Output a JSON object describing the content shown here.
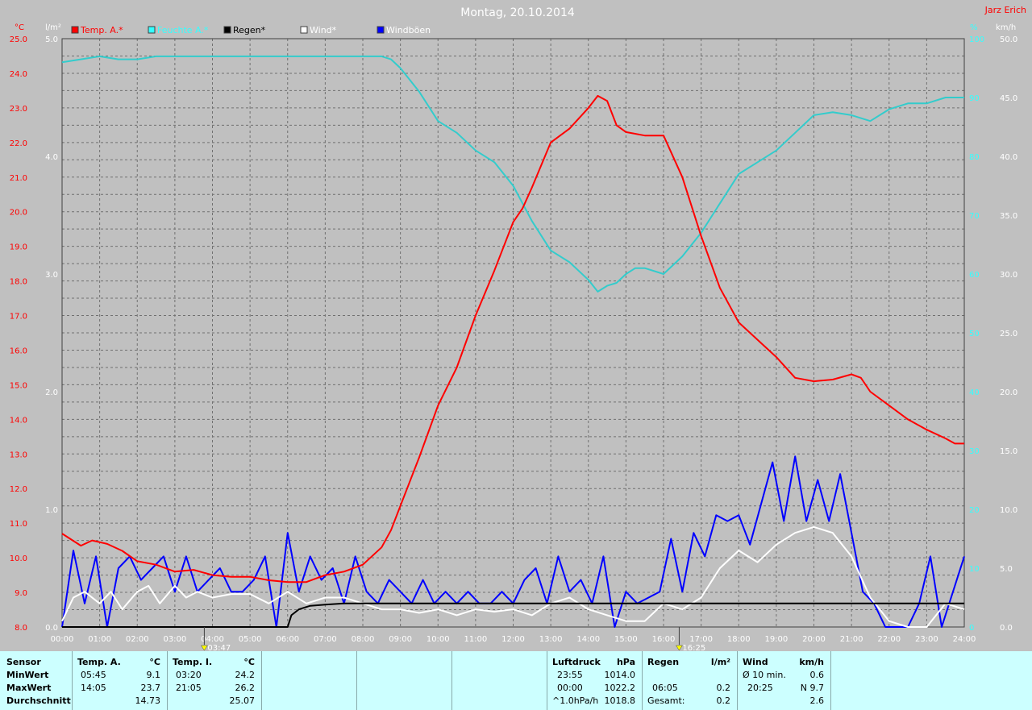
{
  "header": {
    "title": "Montag, 20.10.2014",
    "author": "Jarz Erich"
  },
  "colors": {
    "bg": "#c0c0c0",
    "temp": "#ff0000",
    "humidity": "#33cccc",
    "rain": "#000000",
    "wind": "#ffffff",
    "gusts": "#0000ff",
    "author": "#ff0000",
    "table_bg": "#ccffff"
  },
  "legend": [
    {
      "label": "Temp. A.*",
      "color": "#ff0000",
      "text_color": "#ff0000"
    },
    {
      "label": "Feuchte A.*",
      "color": "#33ffff",
      "text_color": "#33ffff"
    },
    {
      "label": "Regen*",
      "color": "#000000",
      "text_color": "#000000"
    },
    {
      "label": "Wind*",
      "color": "#ffffff",
      "text_color": "#ffffff"
    },
    {
      "label": "Windböen",
      "color": "#0000ff",
      "text_color": "#ffffff"
    }
  ],
  "axis_units": {
    "temp": "°C",
    "rain": "l/m²",
    "humidity": "%",
    "wind": "km/h"
  },
  "sun_markers": {
    "sunrise": "03:47",
    "sunset": "16:25"
  },
  "chart_data": {
    "type": "line",
    "title": "Montag, 20.10.2014",
    "x_ticks": [
      "00:00",
      "01:00",
      "02:00",
      "03:00",
      "04:00",
      "05:00",
      "06:00",
      "07:00",
      "08:00",
      "09:00",
      "10:00",
      "11:00",
      "12:00",
      "13:00",
      "14:00",
      "15:00",
      "16:00",
      "17:00",
      "18:00",
      "19:00",
      "20:00",
      "21:00",
      "22:00",
      "23:00",
      "24:00"
    ],
    "axes": {
      "temp": {
        "label": "°C",
        "range": [
          8.0,
          25.0
        ],
        "ticks": [
          "8.0",
          "9.0",
          "10.0",
          "11.0",
          "12.0",
          "13.0",
          "14.0",
          "15.0",
          "16.0",
          "17.0",
          "18.0",
          "19.0",
          "20.0",
          "21.0",
          "22.0",
          "23.0",
          "24.0",
          "25.0"
        ]
      },
      "rain": {
        "label": "l/m²",
        "range": [
          0.0,
          5.0
        ],
        "ticks": [
          "0.0",
          "1.0",
          "2.0",
          "3.0",
          "4.0",
          "5.0"
        ]
      },
      "humidity": {
        "label": "%",
        "range": [
          0,
          100
        ],
        "ticks": [
          "0",
          "10",
          "20",
          "30",
          "40",
          "50",
          "60",
          "70",
          "80",
          "90",
          "100"
        ]
      },
      "wind": {
        "label": "km/h",
        "range": [
          0.0,
          50.0
        ],
        "ticks": [
          "0.0",
          "5.0",
          "10.0",
          "15.0",
          "20.0",
          "25.0",
          "30.0",
          "35.0",
          "40.0",
          "45.0",
          "50.0"
        ]
      }
    },
    "grid": true,
    "series": [
      {
        "name": "Temp. A.*",
        "axis": "temp",
        "x": [
          0,
          0.5,
          0.8,
          1.2,
          1.6,
          2.0,
          2.5,
          3.0,
          3.5,
          4.0,
          4.5,
          5.0,
          5.5,
          6.0,
          6.5,
          7.0,
          7.5,
          8.0,
          8.5,
          8.75,
          9.0,
          9.5,
          10.0,
          10.5,
          11.0,
          11.5,
          12.0,
          12.25,
          12.5,
          13.0,
          13.5,
          14.0,
          14.25,
          14.5,
          14.75,
          15.0,
          15.5,
          16.0,
          16.5,
          17.0,
          17.5,
          18.0,
          18.5,
          19.0,
          19.5,
          20.0,
          20.5,
          21.0,
          21.25,
          21.5,
          22.0,
          22.5,
          23.0,
          23.5,
          23.75,
          24.0
        ],
        "values": [
          10.7,
          10.35,
          10.5,
          10.4,
          10.2,
          9.9,
          9.8,
          9.6,
          9.65,
          9.5,
          9.45,
          9.45,
          9.35,
          9.3,
          9.3,
          9.5,
          9.6,
          9.8,
          10.3,
          10.8,
          11.5,
          12.9,
          14.4,
          15.5,
          17.0,
          18.3,
          19.7,
          20.1,
          20.7,
          22.0,
          22.4,
          23.0,
          23.35,
          23.2,
          22.5,
          22.3,
          22.2,
          22.2,
          21.0,
          19.3,
          17.8,
          16.8,
          16.3,
          15.8,
          15.2,
          15.1,
          15.15,
          15.3,
          15.2,
          14.8,
          14.4,
          14.0,
          13.7,
          13.45,
          13.3,
          13.3
        ]
      },
      {
        "name": "Feuchte A.*",
        "axis": "humidity",
        "x": [
          0,
          0.5,
          1.0,
          1.5,
          2.0,
          2.5,
          3.0,
          4.0,
          5.0,
          6.0,
          7.0,
          8.0,
          8.5,
          8.75,
          9.0,
          9.5,
          10.0,
          10.5,
          11.0,
          11.5,
          12.0,
          12.5,
          13.0,
          13.5,
          14.0,
          14.25,
          14.5,
          14.75,
          15.0,
          15.25,
          15.5,
          16.0,
          16.5,
          17.0,
          17.5,
          18.0,
          18.5,
          19.0,
          19.5,
          20.0,
          20.5,
          21.0,
          21.5,
          22.0,
          22.5,
          23.0,
          23.5,
          24.0
        ],
        "values": [
          96,
          96.5,
          97,
          96.5,
          96.5,
          97,
          97,
          97,
          97,
          97,
          97,
          97,
          97,
          96.5,
          95,
          91,
          86,
          84,
          81,
          79,
          75,
          69,
          64,
          62,
          59,
          57,
          58,
          58.5,
          60,
          61,
          61,
          60,
          63,
          67,
          72,
          77,
          79,
          81,
          84,
          87,
          87.5,
          87,
          86,
          88,
          89,
          89,
          90,
          90
        ]
      },
      {
        "name": "Regen*",
        "axis": "rain",
        "x": [
          0,
          6.0,
          6.05,
          6.1,
          6.3,
          6.6,
          7.0,
          7.5,
          8.0,
          24.0
        ],
        "values": [
          0,
          0,
          0.05,
          0.1,
          0.15,
          0.18,
          0.19,
          0.2,
          0.2,
          0.2
        ]
      },
      {
        "name": "Wind*",
        "axis": "wind",
        "x": [
          0,
          0.3,
          0.6,
          1.0,
          1.3,
          1.6,
          2.0,
          2.3,
          2.6,
          3.0,
          3.3,
          3.6,
          4.0,
          4.5,
          5.0,
          5.5,
          6.0,
          6.5,
          7.0,
          7.5,
          8.0,
          8.5,
          9.0,
          9.5,
          10.0,
          10.5,
          11.0,
          11.5,
          12.0,
          12.5,
          13.0,
          13.5,
          14.0,
          14.5,
          15.0,
          15.5,
          16.0,
          16.5,
          17.0,
          17.5,
          18.0,
          18.5,
          19.0,
          19.5,
          20.0,
          20.5,
          21.0,
          21.5,
          22.0,
          22.5,
          23.0,
          23.5,
          24.0
        ],
        "values": [
          0.5,
          2.5,
          3.0,
          2.0,
          3.0,
          1.5,
          3.0,
          3.5,
          2.0,
          3.5,
          2.5,
          3.0,
          2.5,
          2.8,
          2.8,
          2.0,
          3.0,
          2.0,
          2.5,
          2.5,
          2.0,
          1.5,
          1.5,
          1.2,
          1.5,
          1.0,
          1.5,
          1.3,
          1.5,
          1.0,
          2.0,
          2.5,
          1.5,
          1.0,
          0.5,
          0.5,
          2.0,
          1.5,
          2.5,
          5.0,
          6.5,
          5.5,
          7.0,
          8.0,
          8.5,
          8.0,
          6.0,
          2.5,
          0.5,
          0,
          0,
          2.0,
          1.5
        ]
      },
      {
        "name": "Windböen",
        "axis": "wind",
        "x": [
          0,
          0.3,
          0.6,
          0.9,
          1.2,
          1.5,
          1.8,
          2.1,
          2.4,
          2.7,
          3.0,
          3.3,
          3.6,
          3.9,
          4.2,
          4.5,
          4.8,
          5.1,
          5.4,
          5.7,
          6.0,
          6.3,
          6.6,
          6.9,
          7.2,
          7.5,
          7.8,
          8.1,
          8.4,
          8.7,
          9.0,
          9.3,
          9.6,
          9.9,
          10.2,
          10.5,
          10.8,
          11.1,
          11.4,
          11.7,
          12.0,
          12.3,
          12.6,
          12.9,
          13.2,
          13.5,
          13.8,
          14.1,
          14.4,
          14.7,
          15.0,
          15.3,
          15.6,
          15.9,
          16.2,
          16.5,
          16.8,
          17.1,
          17.4,
          17.7,
          18.0,
          18.3,
          18.6,
          18.9,
          19.2,
          19.5,
          19.8,
          20.1,
          20.4,
          20.7,
          21.0,
          21.3,
          21.6,
          21.9,
          22.2,
          22.5,
          22.8,
          23.1,
          23.4,
          23.7,
          24.0
        ],
        "values": [
          0,
          6.5,
          2.0,
          6.0,
          0,
          5.0,
          6.0,
          4.0,
          5.0,
          6.0,
          3.0,
          6.0,
          3.0,
          4.0,
          5.0,
          3.0,
          3.0,
          4.0,
          6.0,
          0,
          8.0,
          3.0,
          6.0,
          4.0,
          5.0,
          2.0,
          6.0,
          3.0,
          2.0,
          4.0,
          3.0,
          2.0,
          4.0,
          2.0,
          3.0,
          2.0,
          3.0,
          2.0,
          2.0,
          3.0,
          2.0,
          4.0,
          5.0,
          2.0,
          6.0,
          3.0,
          4.0,
          2.0,
          6.0,
          0,
          3.0,
          2.0,
          2.5,
          3.0,
          7.5,
          3.0,
          8.0,
          6.0,
          9.5,
          9.0,
          9.5,
          7.0,
          10.5,
          14.0,
          9.0,
          14.5,
          9.0,
          12.5,
          9.0,
          13.0,
          8.0,
          3.0,
          2.0,
          0,
          0,
          0,
          2.0,
          6.0,
          0,
          3.0,
          6.0
        ]
      }
    ]
  },
  "table": {
    "row_labels": [
      "Sensor",
      "MinWert",
      "MaxWert",
      "Durchschnitt"
    ],
    "temp_a": {
      "header": "Temp. A.",
      "unit": "°C",
      "min_time": "05:45",
      "min": "9.1",
      "max_time": "14:05",
      "max": "23.7",
      "avg": "14.73"
    },
    "temp_i": {
      "header": "Temp. I.",
      "unit": "°C",
      "min_time": "03:20",
      "min": "24.2",
      "max_time": "21:05",
      "max": "26.2",
      "avg": "25.07"
    },
    "pressure": {
      "header": "Luftdruck",
      "unit": "hPa",
      "r1_time": "23:55",
      "r1": "1014.0",
      "r2_time": "00:00",
      "r2": "1022.2",
      "r3_time": "^1.0hPa/h",
      "r3": "1018.8"
    },
    "rain": {
      "header": "Regen",
      "unit": "l/m²",
      "r2_time": "06:05",
      "r2": "0.2",
      "r3_time": "Gesamt:",
      "r3": "0.2"
    },
    "wind": {
      "header": "Wind",
      "unit": "km/h",
      "r1_time": "Ø 10 min.",
      "r1": "0.6",
      "r2_time": "20:25",
      "r2": "N 9.7",
      "r3": "2.6"
    }
  }
}
